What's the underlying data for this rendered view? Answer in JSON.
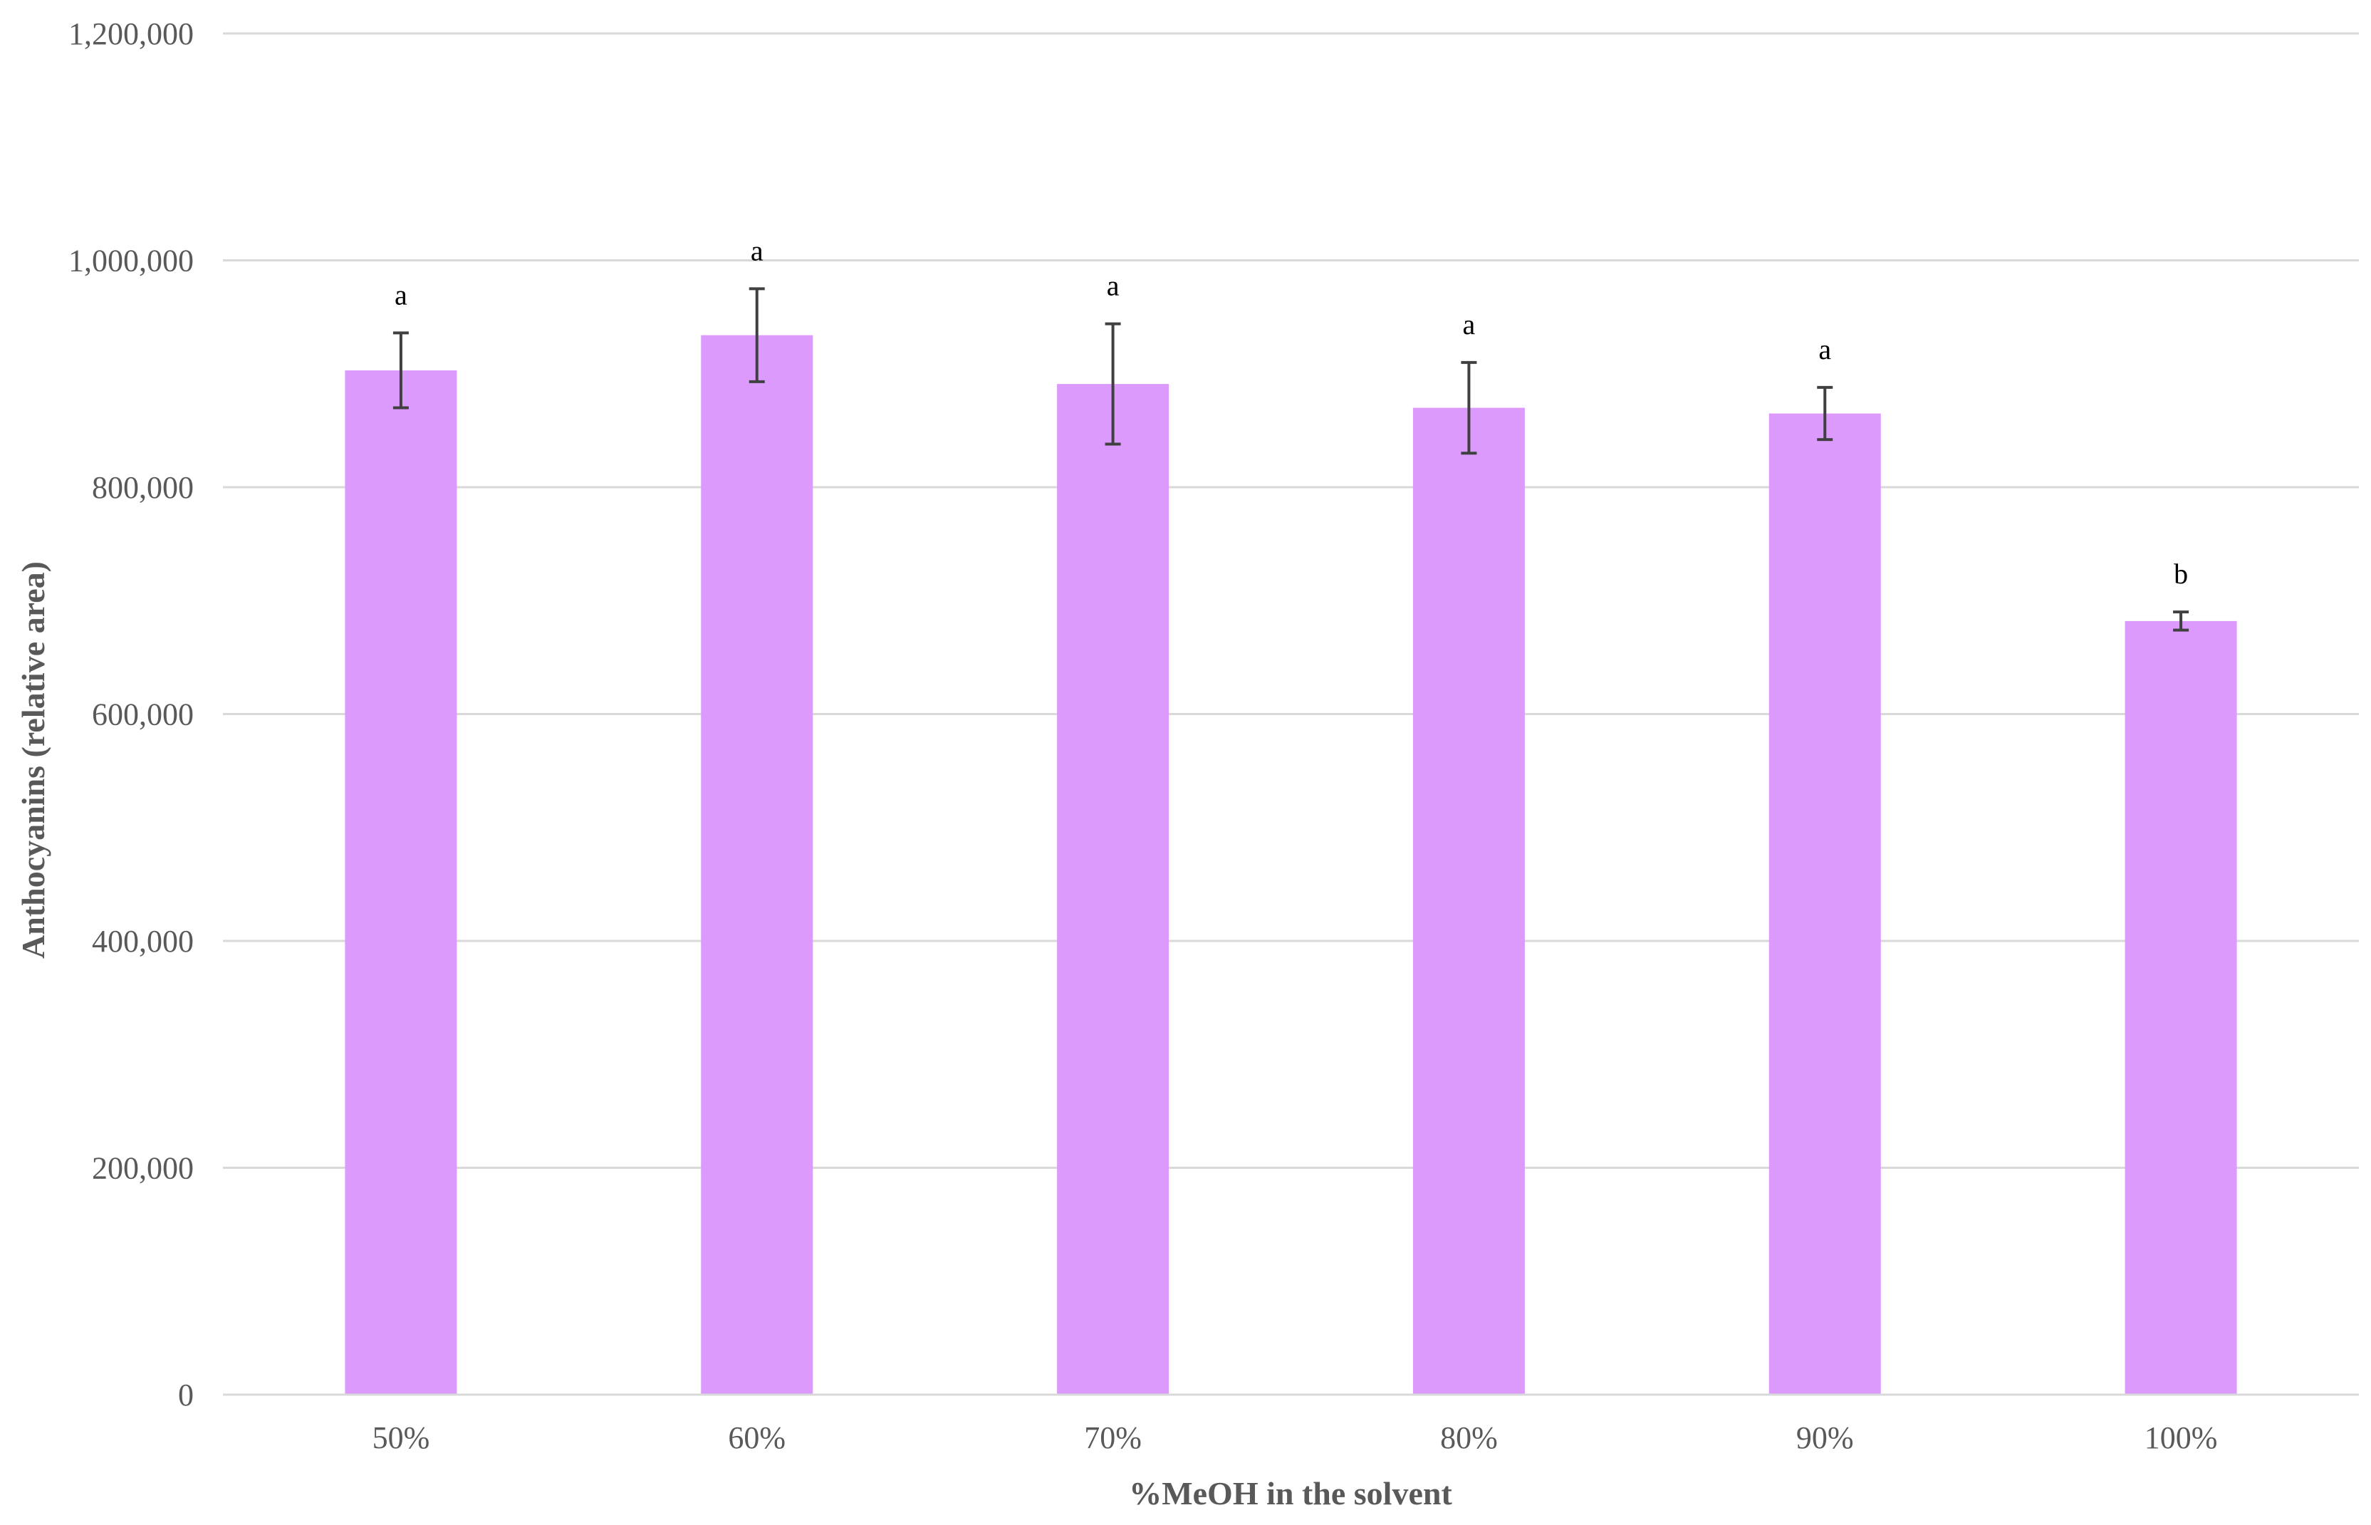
{
  "chart_data": {
    "type": "bar",
    "title": "",
    "xlabel": "%MeOH in the solvent",
    "ylabel": "Anthocyanins (relative area)",
    "categories": [
      "50%",
      "60%",
      "70%",
      "80%",
      "90%",
      "100%"
    ],
    "values": [
      903000,
      934000,
      891000,
      870000,
      865000,
      682000
    ],
    "errors": [
      33000,
      41000,
      53000,
      40000,
      23000,
      8000
    ],
    "significance": [
      "a",
      "a",
      "a",
      "a",
      "a",
      "b"
    ],
    "ylim": [
      0,
      1200000
    ],
    "yticks": [
      0,
      200000,
      400000,
      600000,
      800000,
      1000000,
      1200000
    ],
    "ytick_labels": [
      "0",
      "200,000",
      "400,000",
      "600,000",
      "800,000",
      "1,000,000",
      "1,200,000"
    ],
    "grid": true,
    "legend": "none",
    "colors": {
      "bar": "#dc9afc",
      "grid": "#d9d9d9",
      "error_bar": "#404040",
      "text": "#595959"
    }
  }
}
